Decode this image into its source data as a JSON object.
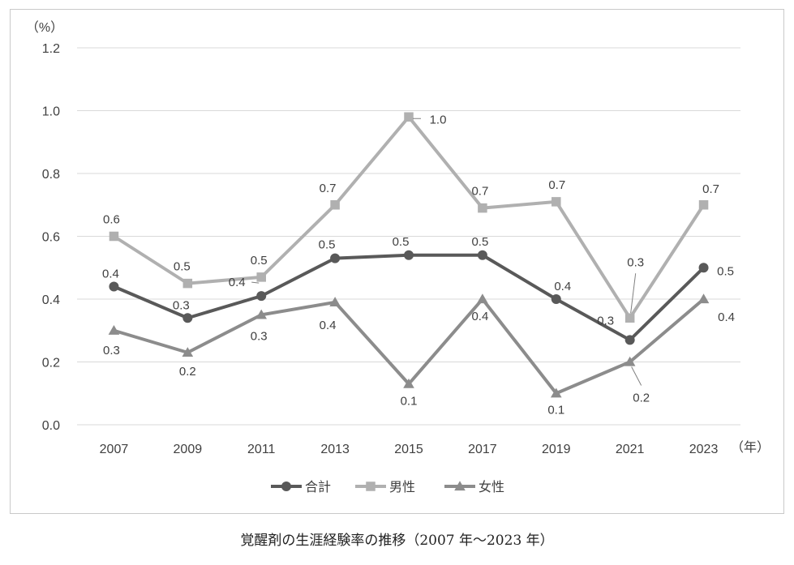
{
  "caption": "覚醒剤の生涯経験率の推移（2007 年～2023 年）",
  "chart_data": {
    "type": "line",
    "y_unit": "（%）",
    "x_unit": "（年）",
    "categories": [
      "2007",
      "2009",
      "2011",
      "2013",
      "2015",
      "2017",
      "2019",
      "2021",
      "2023"
    ],
    "ylim": [
      0,
      1.2
    ],
    "yticks": [
      "0.0",
      "0.2",
      "0.4",
      "0.6",
      "0.8",
      "1.0",
      "1.2"
    ],
    "grid": "horizontal",
    "legend_position": "bottom",
    "series": [
      {
        "name": "合計",
        "marker": "circle",
        "color": "#595959",
        "values": [
          0.44,
          0.34,
          0.41,
          0.53,
          0.54,
          0.54,
          0.4,
          0.27,
          0.5
        ],
        "labels": [
          "0.4",
          "0.3",
          "0.4",
          "0.5",
          "0.5",
          "0.5",
          "0.4",
          "0.3",
          "0.5"
        ]
      },
      {
        "name": "男性",
        "marker": "square",
        "color": "#b0b0b0",
        "values": [
          0.6,
          0.45,
          0.47,
          0.7,
          0.98,
          0.69,
          0.71,
          0.34,
          0.7
        ],
        "labels": [
          "0.6",
          "0.5",
          "0.5",
          "0.7",
          "1.0",
          "0.7",
          "0.7",
          "0.3",
          "0.7"
        ]
      },
      {
        "name": "女性",
        "marker": "triangle",
        "color": "#8c8c8c",
        "values": [
          0.3,
          0.23,
          0.35,
          0.39,
          0.13,
          0.4,
          0.1,
          0.2,
          0.4
        ],
        "labels": [
          "0.3",
          "0.2",
          "0.3",
          "0.4",
          "0.1",
          "0.4",
          "0.1",
          "0.2",
          "0.4"
        ]
      }
    ]
  }
}
